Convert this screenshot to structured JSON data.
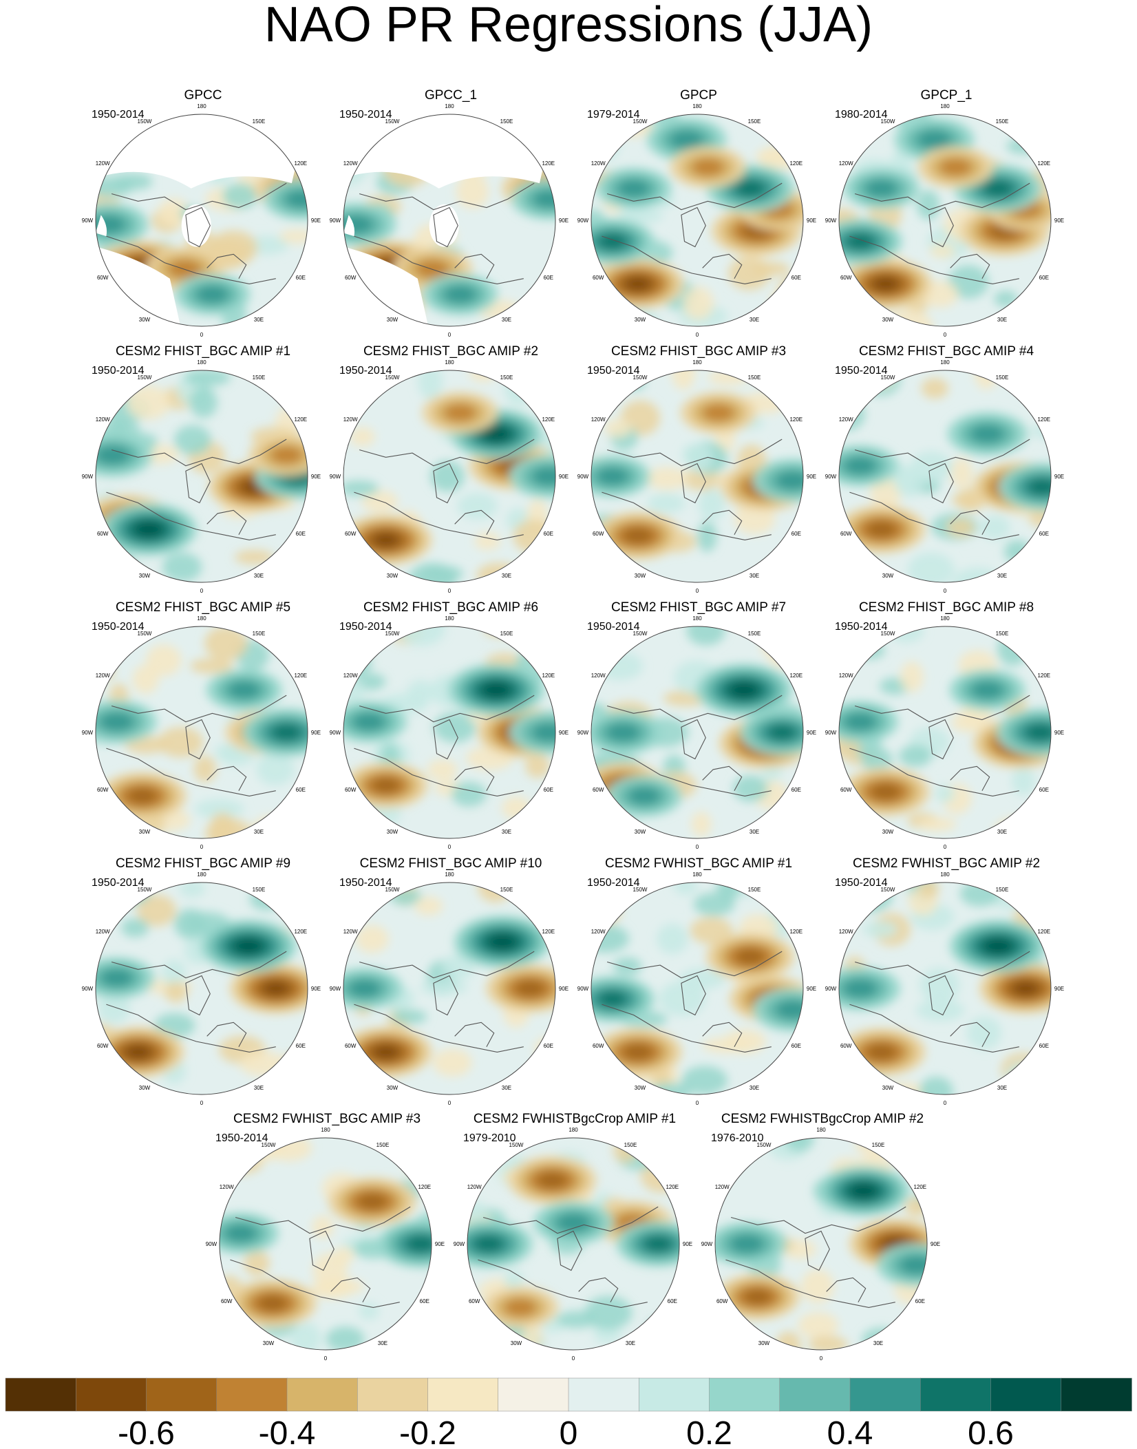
{
  "title": "NAO PR Regressions (JJA)",
  "longitude_labels": [
    "180",
    "150E",
    "120E",
    "90E",
    "60E",
    "30E",
    "0",
    "30W",
    "60W",
    "90W",
    "120W",
    "150W"
  ],
  "panels": [
    {
      "title": "GPCC",
      "period": "1950-2014",
      "missing_land": true,
      "features": [
        [
          "dry",
          0.22,
          0.72,
          1.0
        ],
        [
          "dry",
          0.42,
          0.73,
          0.6
        ],
        [
          "dry",
          0.93,
          0.35,
          0.55
        ],
        [
          "dry",
          0.5,
          0.15,
          0.7
        ],
        [
          "wet",
          0.97,
          0.4,
          0.5
        ],
        [
          "wet",
          0.06,
          0.52,
          0.6
        ],
        [
          "wet",
          0.55,
          0.85,
          0.5
        ]
      ]
    },
    {
      "title": "GPCC_1",
      "period": "1950-2014",
      "missing_land": true,
      "features": [
        [
          "dry",
          0.22,
          0.72,
          1.0
        ],
        [
          "dry",
          0.42,
          0.73,
          0.6
        ],
        [
          "dry",
          0.93,
          0.35,
          0.55
        ],
        [
          "dry",
          0.5,
          0.15,
          0.7
        ],
        [
          "wet",
          0.97,
          0.4,
          0.5
        ],
        [
          "wet",
          0.06,
          0.52,
          0.6
        ],
        [
          "wet",
          0.55,
          0.85,
          0.5
        ]
      ]
    },
    {
      "title": "GPCP",
      "period": "1979-2014",
      "missing_land": false,
      "features": [
        [
          "dry",
          0.22,
          0.8,
          0.9
        ],
        [
          "dry",
          0.78,
          0.55,
          0.85
        ],
        [
          "dry",
          0.88,
          0.45,
          0.5
        ],
        [
          "wet",
          0.1,
          0.6,
          0.7
        ],
        [
          "wet",
          0.75,
          0.35,
          0.8
        ],
        [
          "wet",
          0.2,
          0.35,
          0.5
        ],
        [
          "wet",
          0.45,
          0.12,
          0.6
        ],
        [
          "dry",
          0.55,
          0.25,
          0.5
        ]
      ]
    },
    {
      "title": "GPCP_1",
      "period": "1980-2014",
      "missing_land": false,
      "features": [
        [
          "dry",
          0.22,
          0.8,
          0.9
        ],
        [
          "dry",
          0.78,
          0.55,
          0.85
        ],
        [
          "dry",
          0.88,
          0.45,
          0.5
        ],
        [
          "wet",
          0.1,
          0.6,
          0.7
        ],
        [
          "wet",
          0.75,
          0.35,
          0.8
        ],
        [
          "wet",
          0.2,
          0.35,
          0.5
        ],
        [
          "wet",
          0.45,
          0.12,
          0.6
        ],
        [
          "dry",
          0.55,
          0.25,
          0.5
        ]
      ]
    },
    {
      "title": "CESM2 FHIST_BGC AMIP #1",
      "period": "1950-2014",
      "missing_land": false,
      "features": [
        [
          "dry",
          0.15,
          0.7,
          0.8
        ],
        [
          "dry",
          0.75,
          0.55,
          0.9
        ],
        [
          "wet",
          0.25,
          0.75,
          1.0
        ],
        [
          "wet",
          0.95,
          0.5,
          0.7
        ],
        [
          "wet",
          0.08,
          0.4,
          0.6
        ],
        [
          "dry",
          0.9,
          0.4,
          0.5
        ]
      ]
    },
    {
      "title": "CESM2 FHIST_BGC AMIP #2",
      "period": "1950-2014",
      "missing_land": false,
      "features": [
        [
          "dry",
          0.2,
          0.8,
          0.9
        ],
        [
          "dry",
          0.8,
          0.45,
          0.8
        ],
        [
          "wet",
          0.72,
          0.3,
          0.9
        ],
        [
          "wet",
          0.97,
          0.5,
          0.6
        ],
        [
          "dry",
          0.55,
          0.2,
          0.5
        ]
      ]
    },
    {
      "title": "CESM2 FHIST_BGC AMIP #3",
      "period": "1950-2014",
      "missing_land": false,
      "features": [
        [
          "dry",
          0.22,
          0.78,
          0.8
        ],
        [
          "dry",
          0.82,
          0.55,
          0.8
        ],
        [
          "wet",
          0.95,
          0.52,
          0.6
        ],
        [
          "wet",
          0.1,
          0.5,
          0.5
        ],
        [
          "dry",
          0.6,
          0.2,
          0.5
        ]
      ]
    },
    {
      "title": "CESM2 FHIST_BGC AMIP #4",
      "period": "1950-2014",
      "missing_land": false,
      "features": [
        [
          "dry",
          0.2,
          0.75,
          0.8
        ],
        [
          "dry",
          0.85,
          0.55,
          0.9
        ],
        [
          "wet",
          0.96,
          0.55,
          0.8
        ],
        [
          "wet",
          0.1,
          0.45,
          0.5
        ],
        [
          "wet",
          0.7,
          0.3,
          0.6
        ]
      ]
    },
    {
      "title": "CESM2 FHIST_BGC AMIP #5",
      "period": "1950-2014",
      "missing_land": false,
      "features": [
        [
          "dry",
          0.22,
          0.8,
          0.8
        ],
        [
          "dry",
          0.8,
          0.5,
          0.6
        ],
        [
          "wet",
          0.9,
          0.5,
          0.8
        ],
        [
          "wet",
          0.1,
          0.45,
          0.6
        ],
        [
          "wet",
          0.7,
          0.3,
          0.5
        ]
      ]
    },
    {
      "title": "CESM2 FHIST_BGC AMIP #6",
      "period": "1950-2014",
      "missing_land": false,
      "features": [
        [
          "dry",
          0.2,
          0.75,
          0.7
        ],
        [
          "dry",
          0.85,
          0.5,
          0.9
        ],
        [
          "wet",
          0.72,
          0.3,
          1.0
        ],
        [
          "wet",
          0.97,
          0.5,
          0.6
        ],
        [
          "wet",
          0.12,
          0.45,
          0.5
        ]
      ]
    },
    {
      "title": "CESM2 FHIST_BGC AMIP #7",
      "period": "1950-2014",
      "missing_land": false,
      "features": [
        [
          "dry",
          0.15,
          0.75,
          0.7
        ],
        [
          "dry",
          0.82,
          0.55,
          0.9
        ],
        [
          "wet",
          0.72,
          0.3,
          1.0
        ],
        [
          "wet",
          0.9,
          0.5,
          0.7
        ],
        [
          "wet",
          0.15,
          0.5,
          0.6
        ],
        [
          "wet",
          0.25,
          0.8,
          0.5
        ]
      ]
    },
    {
      "title": "CESM2 FHIST_BGC AMIP #8",
      "period": "1950-2014",
      "missing_land": false,
      "features": [
        [
          "dry",
          0.22,
          0.78,
          0.8
        ],
        [
          "dry",
          0.85,
          0.55,
          0.9
        ],
        [
          "wet",
          0.95,
          0.5,
          0.8
        ],
        [
          "wet",
          0.1,
          0.45,
          0.5
        ],
        [
          "wet",
          0.7,
          0.3,
          0.5
        ]
      ]
    },
    {
      "title": "CESM2 FHIST_BGC AMIP #9",
      "period": "1950-2014",
      "missing_land": false,
      "features": [
        [
          "dry",
          0.2,
          0.8,
          0.9
        ],
        [
          "dry",
          0.85,
          0.5,
          0.9
        ],
        [
          "wet",
          0.72,
          0.3,
          1.0
        ],
        [
          "wet",
          0.1,
          0.45,
          0.5
        ]
      ]
    },
    {
      "title": "CESM2 FHIST_BGC AMIP #10",
      "period": "1950-2014",
      "missing_land": false,
      "features": [
        [
          "dry",
          0.2,
          0.8,
          0.9
        ],
        [
          "dry",
          0.88,
          0.5,
          0.8
        ],
        [
          "wet",
          0.75,
          0.28,
          1.0
        ],
        [
          "wet",
          0.1,
          0.5,
          0.5
        ]
      ]
    },
    {
      "title": "CESM2 FWHIST_BGC AMIP #1",
      "period": "1950-2014",
      "missing_land": false,
      "features": [
        [
          "dry",
          0.22,
          0.8,
          0.8
        ],
        [
          "dry",
          0.75,
          0.35,
          0.8
        ],
        [
          "dry",
          0.85,
          0.55,
          0.7
        ],
        [
          "wet",
          0.1,
          0.55,
          0.7
        ],
        [
          "wet",
          0.95,
          0.6,
          0.6
        ]
      ]
    },
    {
      "title": "CESM2 FWHIST_BGC AMIP #2",
      "period": "1950-2014",
      "missing_land": false,
      "features": [
        [
          "dry",
          0.2,
          0.8,
          0.8
        ],
        [
          "dry",
          0.88,
          0.5,
          0.9
        ],
        [
          "wet",
          0.75,
          0.3,
          1.0
        ],
        [
          "wet",
          0.1,
          0.5,
          0.6
        ]
      ]
    },
    {
      "title": "CESM2 FWHIST_BGC AMIP #3",
      "period": "1950-2014",
      "missing_land": false,
      "features": [
        [
          "dry",
          0.25,
          0.78,
          0.8
        ],
        [
          "dry",
          0.72,
          0.3,
          0.8
        ],
        [
          "wet",
          0.95,
          0.5,
          0.8
        ],
        [
          "wet",
          0.1,
          0.45,
          0.5
        ]
      ]
    },
    {
      "title": "CESM2 FWHISTBgcCrop AMIP #1",
      "period": "1979-2010",
      "missing_land": false,
      "features": [
        [
          "dry",
          0.4,
          0.2,
          0.8
        ],
        [
          "dry",
          0.78,
          0.4,
          0.6
        ],
        [
          "wet",
          0.1,
          0.5,
          0.8
        ],
        [
          "wet",
          0.5,
          0.4,
          0.6
        ],
        [
          "wet",
          0.9,
          0.5,
          0.7
        ],
        [
          "dry",
          0.25,
          0.8,
          0.5
        ]
      ]
    },
    {
      "title": "CESM2 FWHISTBgcCrop AMIP #2",
      "period": "1976-2010",
      "missing_land": false,
      "features": [
        [
          "dry",
          0.2,
          0.75,
          0.7
        ],
        [
          "dry",
          0.85,
          0.5,
          0.9
        ],
        [
          "wet",
          0.7,
          0.25,
          0.9
        ],
        [
          "wet",
          0.15,
          0.5,
          0.6
        ],
        [
          "wet",
          0.95,
          0.6,
          0.6
        ]
      ]
    }
  ],
  "colorbar": {
    "colors": [
      "#543005",
      "#7e480b",
      "#a06419",
      "#c08233",
      "#d7b46a",
      "#ead3a0",
      "#f6e8c3",
      "#f5f1e6",
      "#e3f0ef",
      "#c7eae5",
      "#96d6cb",
      "#66b9ae",
      "#35978f",
      "#0f7468",
      "#01594f",
      "#003c30"
    ],
    "labels": [
      "-0.6",
      "-0.4",
      "-0.2",
      "0",
      "0.2",
      "0.4",
      "0.6"
    ],
    "label_values": [
      -0.6,
      -0.4,
      -0.2,
      0,
      0.2,
      0.4,
      0.6
    ],
    "min": -0.8,
    "max": 0.8
  }
}
